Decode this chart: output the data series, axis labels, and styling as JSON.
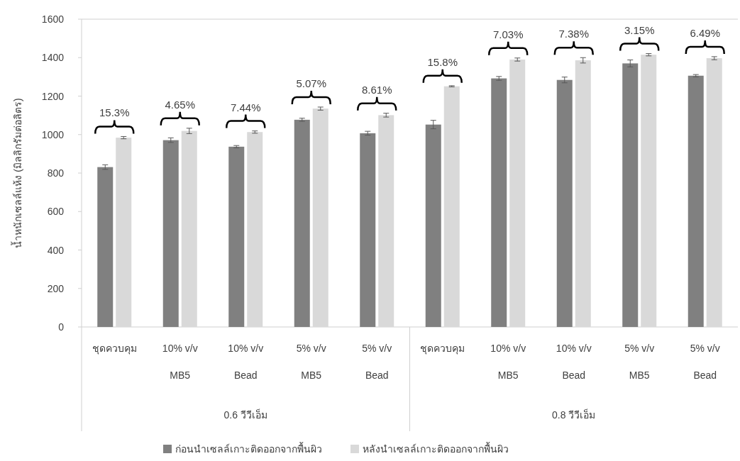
{
  "chart_data": {
    "type": "bar",
    "ylabel": "น้ำหนักเซลล์แห้ง  (มิลลิกรัมต่อลิตร)",
    "categories": [
      "ชุดควบคุม",
      "10% v/v\nMB5",
      "10% v/v\nBead",
      "5% v/v\nMB5",
      "5% v/v\nBead",
      "ชุดควบคุม",
      "10% v/v\nMB5",
      "10% v/v\nBead",
      "5% v/v\nMB5",
      "5% v/v\nBead"
    ],
    "series": [
      {
        "name": "ก่อนนำเซลล์เกาะติดออกจากพื้นผิว",
        "color": "#808080",
        "values": [
          831,
          971,
          937,
          1077,
          1007,
          1052,
          1292,
          1284,
          1370,
          1306
        ],
        "errors": [
          12,
          12,
          6,
          8,
          10,
          22,
          10,
          15,
          18,
          6
        ]
      },
      {
        "name": "หลังนำเซลล์เกาะติดออกจากพื้นผิว",
        "color": "#d9d9d9",
        "values": [
          984,
          1019,
          1013,
          1135,
          1101,
          1251,
          1390,
          1386,
          1415,
          1397
        ],
        "errors": [
          6,
          14,
          6,
          8,
          10,
          3,
          8,
          14,
          6,
          8
        ]
      }
    ],
    "annotations": [
      "15.3%",
      "4.65%",
      "7.44%",
      "5.07%",
      "8.61%",
      "15.8%",
      "7.03%",
      "7.38%",
      "3.15%",
      "6.49%",
      "0.6 วีวีเอ็ม",
      "0.8 วีวีเอ็ม"
    ],
    "ylim": [
      0,
      1600
    ],
    "yticks": [
      0,
      200,
      400,
      600,
      800,
      1000,
      1200,
      1400,
      1600
    ],
    "grid": false,
    "legend": "bottom"
  }
}
